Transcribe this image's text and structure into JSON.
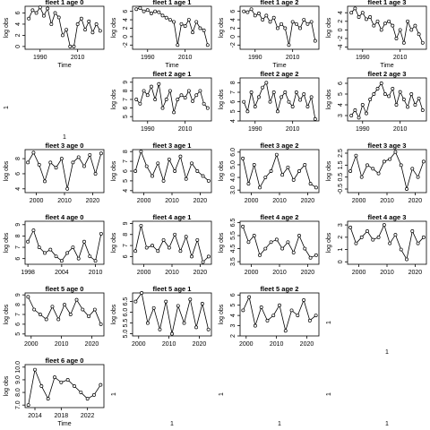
{
  "chart_data": [
    {
      "type": "line",
      "title": "fleet 1 age 0",
      "xlabel": "Time",
      "ylabel": "log obs",
      "color": "#000000",
      "x": [
        1984,
        1986,
        1988,
        1990,
        1992,
        1994,
        1996,
        1998,
        2000,
        2002,
        2004,
        2006,
        2008,
        2010,
        2012,
        2014,
        2016,
        2018,
        2020,
        2022
      ],
      "values": [
        5,
        6.5,
        6,
        7,
        5.5,
        6.8,
        4,
        6,
        5.2,
        2,
        3,
        0,
        0,
        4,
        5,
        3,
        4.5,
        2.5,
        4,
        2.8
      ],
      "xlim": [
        1982,
        2024
      ],
      "ylim": [
        -0.5,
        7.2
      ],
      "xticks": [
        1990,
        2010
      ],
      "yticks": [
        0,
        2,
        4,
        6
      ]
    },
    {
      "type": "line",
      "title": "fleet 1 age 1",
      "xlabel": "Time",
      "ylabel": "log obs",
      "color": "#000000",
      "x": [
        1984,
        1986,
        1988,
        1990,
        1992,
        1994,
        1996,
        1998,
        2000,
        2002,
        2004,
        2006,
        2008,
        2010,
        2012,
        2014,
        2016,
        2018,
        2020,
        2022
      ],
      "values": [
        6.5,
        6.8,
        6,
        6.3,
        5.5,
        6,
        5.8,
        5,
        4.5,
        4,
        3.5,
        -2,
        3,
        2.5,
        4,
        1,
        3.5,
        2,
        1.5,
        -2
      ],
      "xlim": [
        1982,
        2024
      ],
      "ylim": [
        -3,
        7.2
      ],
      "xticks": [
        1990,
        2010
      ],
      "yticks": [
        -2,
        0,
        2,
        4,
        6
      ]
    },
    {
      "type": "line",
      "title": "fleet 1 age 2",
      "xlabel": "Time",
      "ylabel": "log obs",
      "color": "#000000",
      "x": [
        1984,
        1986,
        1988,
        1990,
        1992,
        1994,
        1996,
        1998,
        2000,
        2002,
        2004,
        2006,
        2008,
        2010,
        2012,
        2014,
        2016,
        2018,
        2020,
        2022
      ],
      "values": [
        6,
        5.8,
        6.5,
        5,
        5.5,
        4,
        5,
        3.5,
        4.5,
        2,
        3,
        2,
        -2,
        3.5,
        3,
        2,
        4,
        3,
        3.5,
        -1
      ],
      "xlim": [
        1982,
        2024
      ],
      "ylim": [
        -3,
        7.2
      ],
      "xticks": [
        1990,
        2010
      ],
      "yticks": [
        -2,
        0,
        2,
        4,
        6
      ]
    },
    {
      "type": "line",
      "title": "fleet 1 age 3",
      "xlabel": "Time",
      "ylabel": "log obs",
      "color": "#000000",
      "x": [
        1984,
        1986,
        1988,
        1990,
        1992,
        1994,
        1996,
        1998,
        2000,
        2002,
        2004,
        2006,
        2008,
        2010,
        2012,
        2014,
        2016,
        2018,
        2020,
        2022
      ],
      "values": [
        4,
        5,
        3,
        4,
        2.5,
        3,
        1,
        2,
        0,
        1.5,
        2,
        1,
        -2,
        0,
        -3,
        2,
        0,
        1,
        -1,
        -3
      ],
      "xlim": [
        1982,
        2024
      ],
      "ylim": [
        -4.5,
        5.5
      ],
      "xticks": [
        1990,
        2010
      ],
      "yticks": [
        -4,
        -2,
        0,
        2,
        4
      ]
    },
    {
      "type": "empty",
      "xlabel": "1",
      "ylabel": "1"
    },
    {
      "type": "line",
      "title": "fleet 2 age 1",
      "ylabel": "log obs",
      "color": "#000000",
      "x": [
        1984,
        1986,
        1988,
        1990,
        1992,
        1994,
        1996,
        1998,
        2000,
        2002,
        2004,
        2006,
        2008,
        2010,
        2012,
        2014,
        2016,
        2018,
        2020,
        2022
      ],
      "values": [
        7,
        6.5,
        8,
        7.5,
        8.5,
        7,
        8.8,
        6,
        7,
        8,
        5.5,
        7,
        7.5,
        7.2,
        8,
        6.8,
        7.5,
        8,
        6.5,
        6
      ],
      "xlim": [
        1982,
        2024
      ],
      "ylim": [
        4.5,
        9.5
      ],
      "xticks": [
        1990,
        2010
      ],
      "yticks": [
        5,
        6,
        7,
        8,
        9
      ]
    },
    {
      "type": "line",
      "title": "fleet 2 age 2",
      "ylabel": "log obs",
      "color": "#000000",
      "x": [
        1984,
        1986,
        1988,
        1990,
        1992,
        1994,
        1996,
        1998,
        2000,
        2002,
        2004,
        2006,
        2008,
        2010,
        2012,
        2014,
        2016,
        2018,
        2020,
        2022
      ],
      "values": [
        6,
        5,
        7,
        5.5,
        6.5,
        7.5,
        8,
        6,
        7,
        5,
        6.5,
        7,
        6,
        5.5,
        7,
        6.2,
        6.8,
        5.5,
        6.5,
        4.2
      ],
      "xlim": [
        1982,
        2024
      ],
      "ylim": [
        4,
        8.5
      ],
      "xticks": [
        1990,
        2010
      ],
      "yticks": [
        4,
        5,
        6,
        7,
        8
      ]
    },
    {
      "type": "line",
      "title": "fleet 2 age 3",
      "ylabel": "log obs",
      "color": "#000000",
      "x": [
        1984,
        1986,
        1988,
        1990,
        1992,
        1994,
        1996,
        1998,
        2000,
        2002,
        2004,
        2006,
        2008,
        2010,
        2012,
        2014,
        2016,
        2018,
        2020,
        2022
      ],
      "values": [
        3,
        3.5,
        2.8,
        4,
        3.2,
        4.5,
        5,
        5.5,
        6,
        5,
        4.8,
        5.5,
        4,
        5.2,
        4.5,
        3.8,
        5,
        4,
        4.6,
        3.5
      ],
      "xlim": [
        1982,
        2024
      ],
      "ylim": [
        2.5,
        6.5
      ],
      "xticks": [
        1990,
        2010
      ],
      "yticks": [
        3,
        4,
        5,
        6
      ]
    },
    {
      "type": "line",
      "title": "fleet 3 age 0",
      "ylabel": "log obs",
      "color": "#000000",
      "x": [
        1997,
        1999,
        2001,
        2003,
        2005,
        2007,
        2009,
        2011,
        2013,
        2015,
        2017,
        2019,
        2021,
        2023
      ],
      "values": [
        7.5,
        8.8,
        7.2,
        5,
        7.5,
        6.8,
        8,
        4,
        7.5,
        8.2,
        7,
        8.5,
        6,
        8.7
      ],
      "xlim": [
        1996,
        2024
      ],
      "ylim": [
        3.5,
        9.2
      ],
      "xticks": [
        2000,
        2010,
        2020
      ],
      "yticks": [
        4,
        6,
        8
      ]
    },
    {
      "type": "line",
      "title": "fleet 3 age 1",
      "ylabel": "log obs",
      "color": "#000000",
      "x": [
        1997,
        1999,
        2001,
        2003,
        2005,
        2007,
        2009,
        2011,
        2013,
        2015,
        2017,
        2019,
        2021,
        2023
      ],
      "values": [
        6,
        8,
        6.5,
        5.5,
        6.8,
        5,
        7.2,
        6,
        7.5,
        5.2,
        6.8,
        6,
        5.5,
        5
      ],
      "xlim": [
        1996,
        2024
      ],
      "ylim": [
        3.8,
        8.2
      ],
      "xticks": [
        2000,
        2010,
        2020
      ],
      "yticks": [
        4,
        5,
        6,
        7,
        8
      ]
    },
    {
      "type": "line",
      "title": "fleet 3 age 2",
      "ylabel": "log obs",
      "color": "#000000",
      "x": [
        1997,
        1999,
        2001,
        2003,
        2005,
        2007,
        2009,
        2011,
        2013,
        2015,
        2017,
        2019,
        2021,
        2023
      ],
      "values": [
        5.5,
        3.5,
        5,
        3.2,
        4,
        4.5,
        5.8,
        4.2,
        4.8,
        3.8,
        4.5,
        5,
        3.5,
        3.2
      ],
      "xlim": [
        1996,
        2024
      ],
      "ylim": [
        2.8,
        6.2
      ],
      "xticks": [
        2000,
        2010,
        2020
      ],
      "yticks": [
        {
          "value": 3,
          "label": "3.0"
        },
        {
          "value": 4,
          "label": "4.0"
        },
        {
          "value": 5,
          "label": "5.0"
        },
        {
          "value": 6,
          "label": "6.0"
        }
      ]
    },
    {
      "type": "line",
      "title": "fleet 3 age 3",
      "ylabel": "log obs",
      "color": "#000000",
      "x": [
        1997,
        1999,
        2001,
        2003,
        2005,
        2007,
        2009,
        2011,
        2013,
        2015,
        2017,
        2019,
        2021,
        2023
      ],
      "values": [
        1,
        2.3,
        0.5,
        1.5,
        1.2,
        0.8,
        1.8,
        2,
        2.6,
        1.5,
        -0.5,
        1.2,
        0.5,
        1.8
      ],
      "xlim": [
        1996,
        2024
      ],
      "ylim": [
        -0.8,
        2.8
      ],
      "xticks": [
        2000,
        2010,
        2020
      ],
      "yticks": [
        -0.5,
        0.5,
        1.5,
        2.5
      ]
    },
    {
      "type": "line",
      "title": "fleet 4 age 0",
      "ylabel": "log obs",
      "color": "#000000",
      "x": [
        1998,
        1999,
        2000,
        2001,
        2002,
        2003,
        2004,
        2005,
        2006,
        2007,
        2008,
        2009,
        2010,
        2011
      ],
      "values": [
        7.5,
        8.5,
        7,
        6.5,
        6.8,
        6.2,
        5.8,
        6.5,
        7,
        6,
        7.5,
        6.2,
        5.8,
        8.2
      ],
      "xlim": [
        1997.5,
        2011.5
      ],
      "ylim": [
        5.5,
        9.3
      ],
      "xticks": [
        1998,
        2004,
        2010
      ],
      "yticks": [
        6,
        7,
        8,
        9
      ]
    },
    {
      "type": "line",
      "title": "fleet 4 age 1",
      "ylabel": "log obs",
      "color": "#000000",
      "x": [
        1997,
        1999,
        2001,
        2003,
        2005,
        2007,
        2009,
        2011,
        2013,
        2015,
        2017,
        2019,
        2021,
        2023
      ],
      "values": [
        6.5,
        8.8,
        6.8,
        7,
        6.5,
        7.5,
        6.8,
        8,
        6.5,
        7.8,
        6,
        7.5,
        5.5,
        6
      ],
      "xlim": [
        1996,
        2024
      ],
      "ylim": [
        5.3,
        9.2
      ],
      "xticks": [
        2000,
        2010,
        2020
      ],
      "yticks": [
        6,
        7,
        8,
        9
      ]
    },
    {
      "type": "line",
      "title": "fleet 4 age 2",
      "ylabel": "log obs",
      "color": "#000000",
      "x": [
        1997,
        1999,
        2001,
        2003,
        2005,
        2007,
        2009,
        2011,
        2013,
        2015,
        2017,
        2019,
        2021,
        2023
      ],
      "values": [
        6.2,
        5,
        5.5,
        4,
        4.5,
        5,
        5.2,
        4.5,
        5,
        4.2,
        5.5,
        4.5,
        3.8,
        4
      ],
      "xlim": [
        1996,
        2024
      ],
      "ylim": [
        3.3,
        6.6
      ],
      "xticks": [
        2000,
        2010,
        2020
      ],
      "yticks": [
        3.5,
        4.5,
        5.5,
        6.5
      ]
    },
    {
      "type": "line",
      "title": "fleet 4 age 3",
      "ylabel": "log obs",
      "color": "#000000",
      "x": [
        1997,
        1999,
        2001,
        2003,
        2005,
        2007,
        2009,
        2011,
        2013,
        2015,
        2017,
        2019,
        2021,
        2023
      ],
      "values": [
        2.8,
        1.5,
        2,
        2.5,
        1.8,
        2,
        3,
        1.5,
        2.2,
        1,
        0.2,
        2.5,
        1.5,
        2
      ],
      "xlim": [
        1996,
        2024
      ],
      "ylim": [
        -0.2,
        3.3
      ],
      "xticks": [
        2000,
        2010,
        2020
      ],
      "yticks": [
        0,
        1,
        2,
        3
      ]
    },
    {
      "type": "line",
      "title": "fleet 5 age 0",
      "ylabel": "log obs",
      "color": "#000000",
      "x": [
        1999,
        2001,
        2003,
        2005,
        2007,
        2009,
        2011,
        2013,
        2015,
        2017,
        2019,
        2021,
        2023
      ],
      "values": [
        8.8,
        7.5,
        7,
        6.5,
        7.8,
        6.5,
        8,
        7,
        8.5,
        7.5,
        6.8,
        7.5,
        6
      ],
      "xlim": [
        1998,
        2024
      ],
      "ylim": [
        4.8,
        9.2
      ],
      "xticks": [
        2000,
        2010,
        2020
      ],
      "yticks": [
        5,
        6,
        7,
        8,
        9
      ]
    },
    {
      "type": "line",
      "title": "fleet 5 age 1",
      "ylabel": "log obs",
      "color": "#000000",
      "x": [
        1999,
        2001,
        2003,
        2005,
        2007,
        2009,
        2011,
        2013,
        2015,
        2017,
        2019,
        2021,
        2023
      ],
      "values": [
        6.5,
        6.9,
        5.5,
        6.2,
        5.2,
        6.5,
        5,
        6.3,
        5.5,
        6.6,
        5.3,
        6.4,
        5.2
      ],
      "xlim": [
        1998,
        2024
      ],
      "ylim": [
        4.9,
        6.9
      ],
      "xticks": [
        2000,
        2010,
        2020
      ],
      "yticks": [
        {
          "value": 5,
          "label": "5.0"
        },
        5.5,
        {
          "value": 6,
          "label": "6.0"
        },
        6.5
      ]
    },
    {
      "type": "line",
      "title": "fleet 5 age 2",
      "ylabel": "log obs",
      "color": "#000000",
      "x": [
        1999,
        2001,
        2003,
        2005,
        2007,
        2009,
        2011,
        2013,
        2015,
        2017,
        2019,
        2021,
        2023
      ],
      "values": [
        4.5,
        5.8,
        3,
        4.8,
        3.5,
        4,
        5,
        2.5,
        4.5,
        4,
        5.5,
        3.5,
        4
      ],
      "xlim": [
        1998,
        2024
      ],
      "ylim": [
        2,
        6.2
      ],
      "xticks": [
        2000,
        2010,
        2020
      ],
      "yticks": [
        2,
        3,
        4,
        5,
        6
      ]
    },
    {
      "type": "empty",
      "xlabel": "1",
      "ylabel": "1"
    },
    {
      "type": "line",
      "title": "fleet 6 age 0",
      "xlabel": "Time",
      "ylabel": "log obs",
      "color": "#000000",
      "x": [
        2013,
        2014,
        2015,
        2016,
        2017,
        2018,
        2019,
        2020,
        2021,
        2022,
        2023,
        2024
      ],
      "values": [
        7,
        9.8,
        8.5,
        7.5,
        9.2,
        8.8,
        9,
        8.5,
        8,
        7.5,
        7.8,
        8.6
      ],
      "xlim": [
        2012.5,
        2024.5
      ],
      "ylim": [
        6.8,
        10.2
      ],
      "xticks": [
        2014,
        2018,
        2022
      ],
      "yticks": [
        {
          "value": 7,
          "label": "7.0"
        },
        {
          "value": 8,
          "label": "8.0"
        },
        {
          "value": 9,
          "label": "9.0"
        },
        {
          "value": 10,
          "label": "10.0"
        }
      ]
    },
    {
      "type": "empty",
      "xlabel": "1",
      "ylabel": "1"
    },
    {
      "type": "empty",
      "xlabel": "1",
      "ylabel": "1"
    },
    {
      "type": "empty",
      "xlabel": "1",
      "ylabel": "1"
    }
  ]
}
